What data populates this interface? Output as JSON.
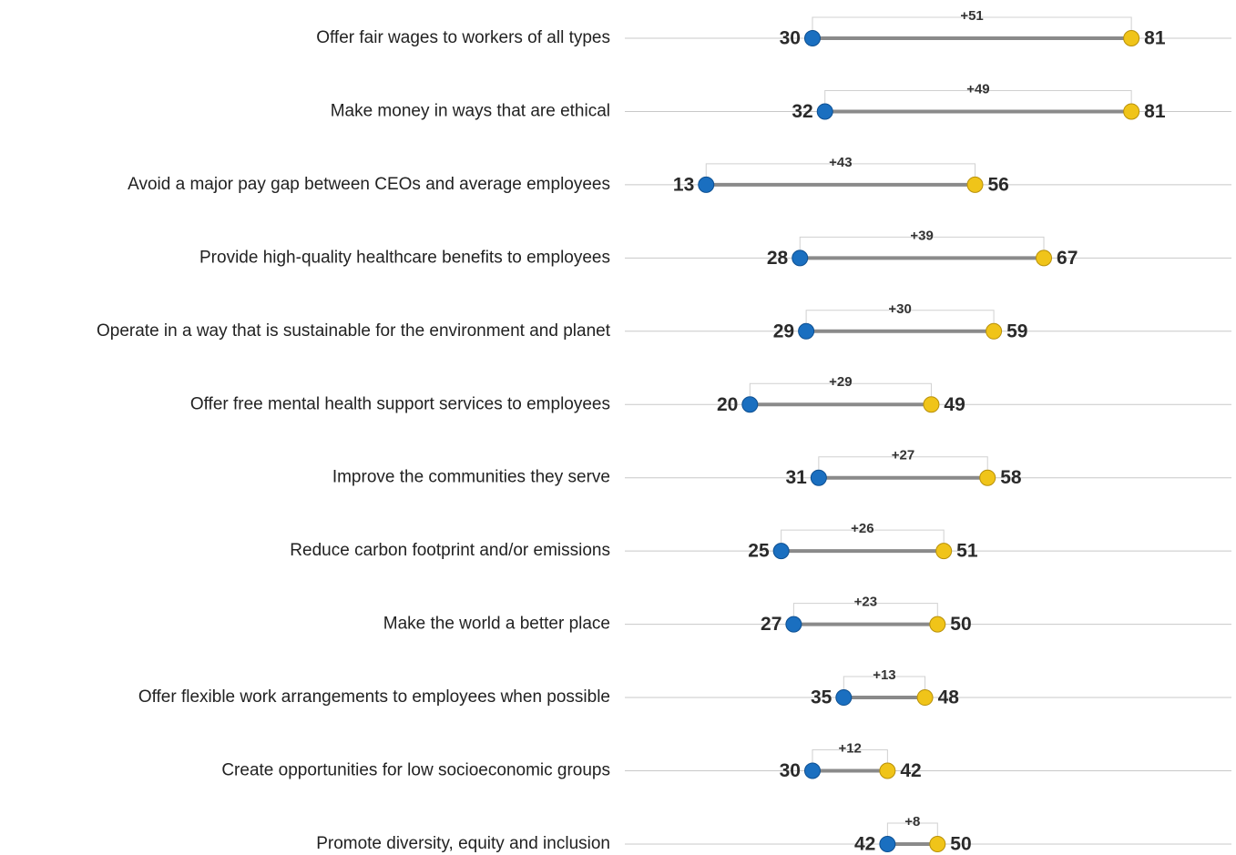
{
  "chart_data": {
    "type": "dumbbell",
    "categories": [
      "Offer fair wages to workers of all types",
      "Make money in ways that are ethical",
      "Avoid a major pay gap between CEOs and average employees",
      "Provide high-quality healthcare benefits to employees",
      "Operate in a way that is sustainable for the environment and planet",
      "Offer free mental health support services to employees",
      "Improve the communities they serve",
      "Reduce carbon footprint and/or emissions",
      "Make the world a better place",
      "Offer flexible work arrangements to employees when possible",
      "Create opportunities for low socioeconomic groups",
      "Promote diversity, equity and inclusion"
    ],
    "series": [
      {
        "color": "#1a6fc0",
        "values": [
          30,
          32,
          13,
          28,
          29,
          20,
          31,
          25,
          27,
          35,
          30,
          42
        ]
      },
      {
        "color": "#f0c419",
        "values": [
          81,
          81,
          56,
          67,
          59,
          49,
          58,
          51,
          50,
          48,
          42,
          50
        ]
      }
    ],
    "gaps": {
      "values": [
        51,
        49,
        43,
        39,
        30,
        29,
        27,
        26,
        23,
        13,
        12,
        8
      ],
      "value_labels": [
        "+51",
        "+49",
        "+43",
        "+39",
        "+30",
        "+29",
        "+27",
        "+26",
        "+23",
        "+13",
        "+12",
        "+8"
      ]
    },
    "xlim": [
      0,
      97
    ]
  }
}
